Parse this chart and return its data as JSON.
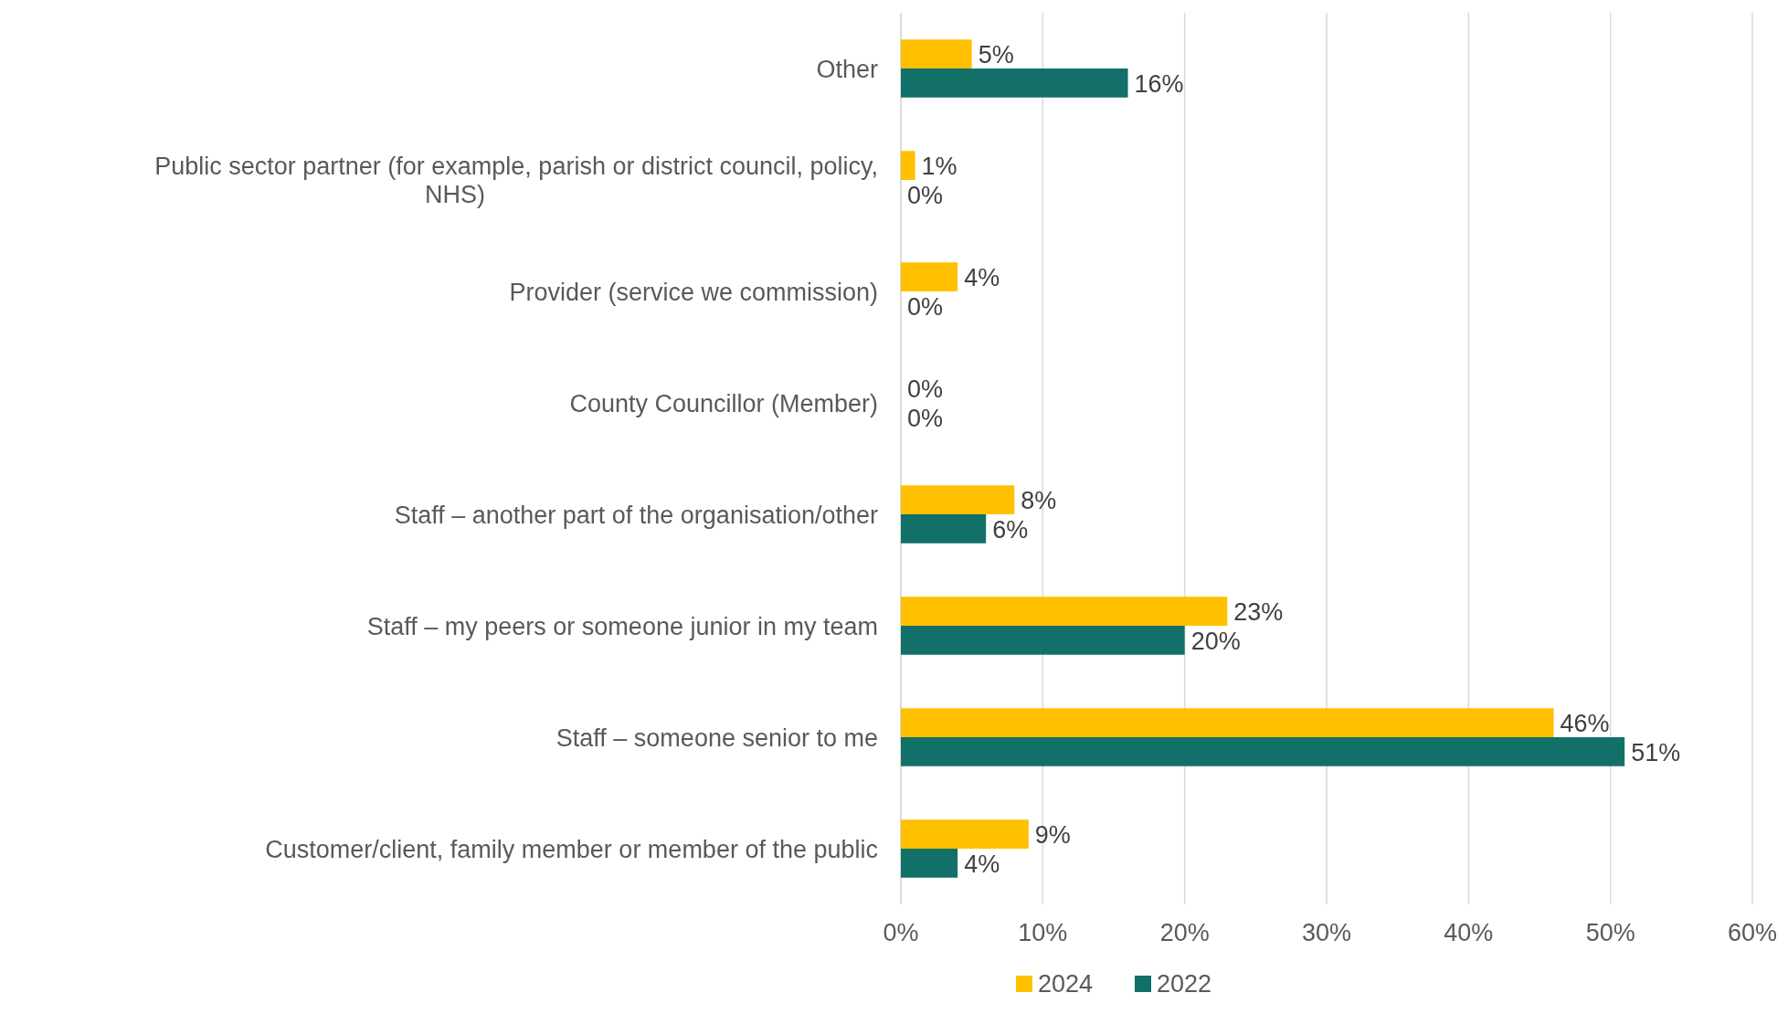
{
  "chart_data": {
    "type": "bar",
    "orientation": "horizontal",
    "categories": [
      "Other",
      "Public sector partner (for example, parish or district council, policy, NHS)",
      "Provider (service we commission)",
      "County Councillor (Member)",
      "Staff – another part of the organisation/other",
      "Staff – my peers or someone junior in my team",
      "Staff – someone senior to me",
      "Customer/client, family member or member of the public"
    ],
    "series": [
      {
        "name": "2024",
        "color": "#ffc000",
        "values": [
          5,
          1,
          4,
          0,
          8,
          23,
          46,
          9
        ],
        "value_labels": [
          "5%",
          "1%",
          "4%",
          "0%",
          "8%",
          "23%",
          "46%",
          "9%"
        ]
      },
      {
        "name": "2022",
        "color": "#127068",
        "values": [
          16,
          0,
          0,
          0,
          6,
          20,
          51,
          4
        ],
        "value_labels": [
          "16%",
          "0%",
          "0%",
          "0%",
          "6%",
          "20%",
          "51%",
          "4%"
        ]
      }
    ],
    "xlim": [
      0,
      60
    ],
    "xticks": [
      {
        "value": 0,
        "label": "0%"
      },
      {
        "value": 10,
        "label": "10%"
      },
      {
        "value": 20,
        "label": "20%"
      },
      {
        "value": 30,
        "label": "30%"
      },
      {
        "value": 40,
        "label": "40%"
      },
      {
        "value": 50,
        "label": "50%"
      },
      {
        "value": 60,
        "label": "60%"
      }
    ],
    "grid": "x",
    "legend": "bottom"
  }
}
